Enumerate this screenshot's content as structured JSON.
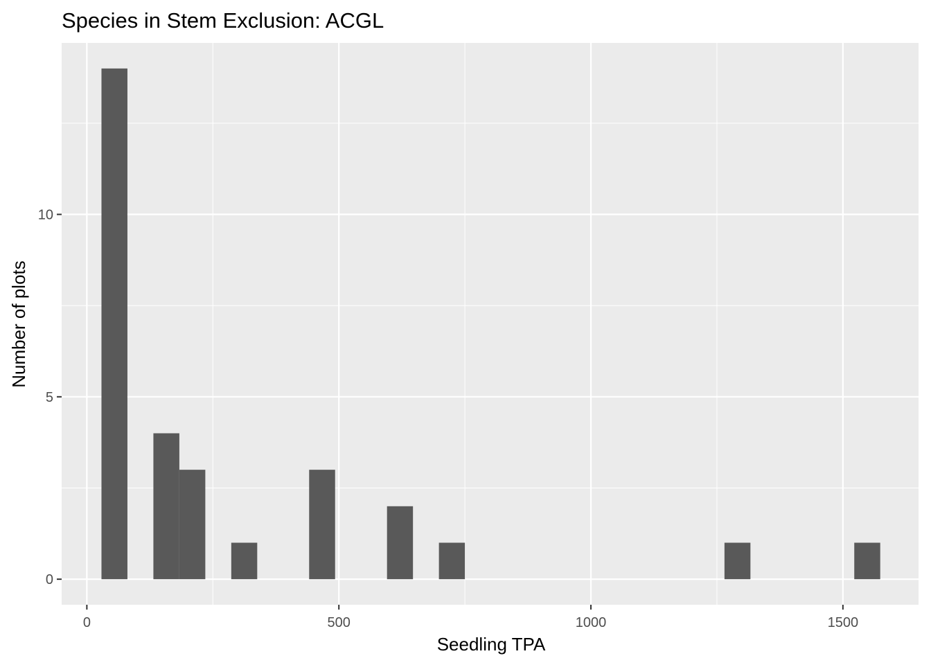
{
  "chart_data": {
    "type": "bar",
    "title": "Species in Stem Exclusion: ACGL",
    "xlabel": "Seedling TPA",
    "ylabel": "Number of plots",
    "xlim": [
      -50,
      1650
    ],
    "ylim": [
      -0.7,
      14.7
    ],
    "x_ticks": [
      0,
      500,
      1000,
      1500
    ],
    "x_tick_labels": [
      "0",
      "500",
      "1000",
      "1500"
    ],
    "y_ticks": [
      0,
      5,
      10
    ],
    "y_tick_labels": [
      "0",
      "5",
      "10"
    ],
    "grid": true,
    "bin_width": 51.5,
    "bins": [
      {
        "x0": 29,
        "x1": 80.5,
        "count": 14
      },
      {
        "x0": 132,
        "x1": 183.5,
        "count": 4
      },
      {
        "x0": 183.5,
        "x1": 235,
        "count": 3
      },
      {
        "x0": 286.5,
        "x1": 338,
        "count": 1
      },
      {
        "x0": 441,
        "x1": 492.5,
        "count": 3
      },
      {
        "x0": 595.5,
        "x1": 647,
        "count": 2
      },
      {
        "x0": 698.5,
        "x1": 750,
        "count": 1
      },
      {
        "x0": 1265,
        "x1": 1316.5,
        "count": 1
      },
      {
        "x0": 1522.5,
        "x1": 1574,
        "count": 1
      }
    ],
    "colors": {
      "panel_background": "#ebebeb",
      "grid_major": "#ffffff",
      "bar_fill": "#595959",
      "tick_color": "#333333",
      "tick_label": "#4d4d4d"
    }
  }
}
